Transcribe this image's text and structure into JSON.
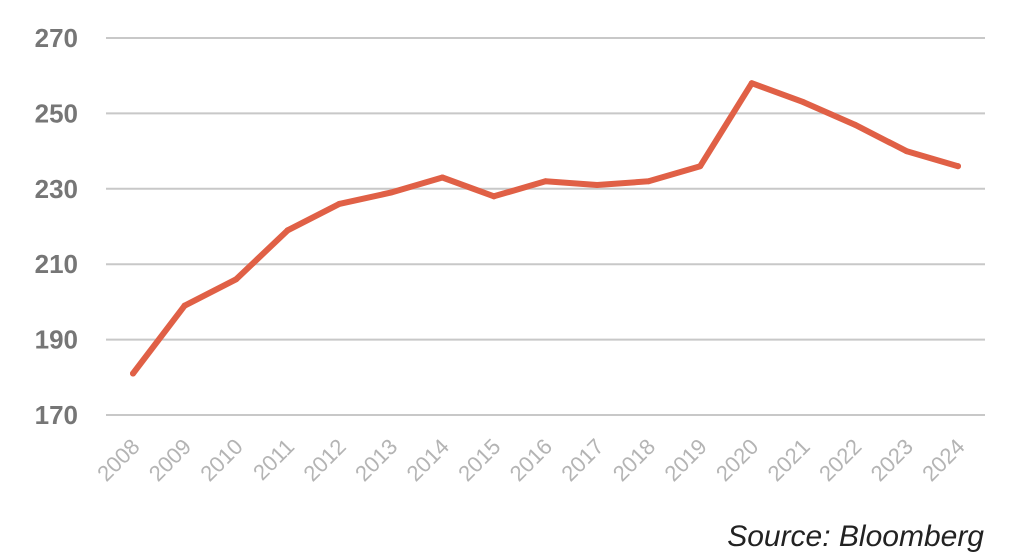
{
  "chart_data": {
    "type": "line",
    "categories": [
      "2008",
      "2009",
      "2010",
      "2011",
      "2012",
      "2013",
      "2014",
      "2015",
      "2016",
      "2017",
      "2018",
      "2019",
      "2020",
      "2021",
      "2022",
      "2023",
      "2024"
    ],
    "series": [
      {
        "values": [
          181,
          199,
          206,
          219,
          226,
          229,
          233,
          228,
          232,
          231,
          232,
          236,
          258,
          253,
          247,
          240,
          236
        ]
      }
    ],
    "yticks": [
      170,
      190,
      210,
      230,
      250,
      270
    ],
    "ylim": [
      170,
      270
    ],
    "grid": true,
    "legend": "none",
    "line_color": "#e06046",
    "source": "Source: Bloomberg"
  }
}
